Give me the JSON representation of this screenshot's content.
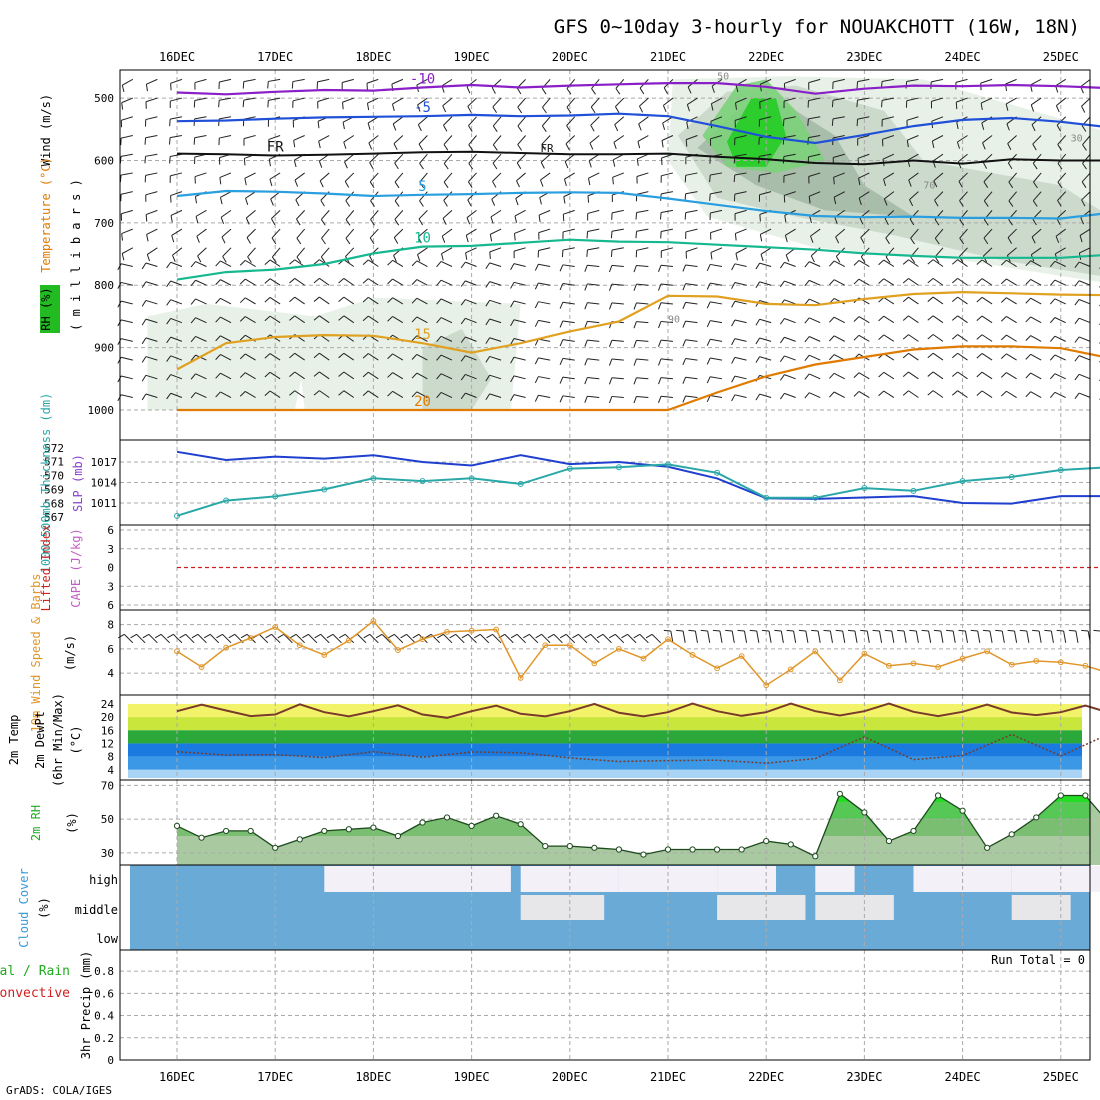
{
  "page": {
    "title": "GFS 0~10day 3-hourly for NOUAKCHOTT (16W, 18N)",
    "footer": "GrADS: COLA/IGES",
    "dates": [
      "16DEC",
      "17DEC",
      "18DEC",
      "19DEC",
      "20DEC",
      "21DEC",
      "22DEC",
      "23DEC",
      "24DEC",
      "25DEC"
    ]
  },
  "colors": {
    "temperature": "#e07b00",
    "rh_green": "#22bb22",
    "slp_blue": "#1f3fcf",
    "thickness_cyan": "#2aa8a8",
    "wind_orange": "#e0962a",
    "cape_magenta": "#c060c0",
    "li_red": "#d02020",
    "cloud_blue": "#6aaad6",
    "cloud_pale": "#f3f0f8"
  },
  "chart_data": [
    {
      "type": "contour",
      "panel": "upper-air",
      "ylabels": [
        "Wind (m/s)",
        "Temperature (°C)",
        "RH (%)",
        "( m i l l i b a r s )"
      ],
      "yticks": [
        500,
        600,
        700,
        800,
        900,
        1000
      ],
      "ylim": [
        455,
        1000
      ],
      "freezing_label": "FR",
      "rh_labels": [
        "30",
        "50",
        "70",
        "90"
      ],
      "temperature_isotherms": [
        {
          "label": "-10",
          "x": [
            0,
            0.5,
            1,
            1.5,
            2,
            2.5,
            3,
            3.5,
            4,
            4.5,
            5,
            5.5,
            6,
            6.5,
            7,
            7.5,
            8,
            8.5,
            9,
            9.5
          ],
          "y": [
            491,
            494,
            490,
            487,
            488,
            483,
            479,
            483,
            480,
            478,
            476,
            476,
            482,
            493,
            485,
            480,
            481,
            479,
            481,
            484
          ]
        },
        {
          "label": "-5",
          "x": [
            0,
            0.5,
            1,
            1.5,
            2,
            2.5,
            3,
            3.5,
            4,
            4.5,
            5,
            5.5,
            6,
            6.5,
            7,
            7.5,
            8,
            8.5,
            9,
            9.5
          ],
          "y": [
            537,
            536,
            533,
            531,
            530,
            529,
            527,
            529,
            528,
            525,
            529,
            545,
            562,
            572,
            559,
            545,
            535,
            532,
            538,
            547
          ]
        },
        {
          "label": "FR",
          "x": [
            0,
            0.5,
            1,
            1.5,
            2,
            2.5,
            3,
            3.5,
            4,
            4.5,
            5,
            5.5,
            6,
            6.5,
            7,
            7.5,
            8,
            8.5,
            9,
            9.5
          ],
          "y": [
            589,
            590,
            592,
            591,
            589,
            587,
            586,
            588,
            590,
            590,
            589,
            594,
            598,
            604,
            606,
            600,
            605,
            598,
            600,
            600
          ]
        },
        {
          "label": "5",
          "x": [
            0,
            0.5,
            1,
            1.5,
            2,
            2.5,
            3,
            3.5,
            4,
            4.5,
            5,
            5.5,
            6,
            6.5,
            7,
            7.5,
            8,
            8.5,
            9,
            9.5
          ],
          "y": [
            657,
            649,
            650,
            653,
            657,
            655,
            654,
            652,
            651,
            652,
            661,
            671,
            681,
            689,
            691,
            690,
            692,
            692,
            693,
            684
          ]
        },
        {
          "label": "10",
          "x": [
            0,
            0.5,
            1,
            1.5,
            2,
            2.5,
            3,
            3.5,
            4,
            4.5,
            5,
            5.5,
            6,
            6.5,
            7,
            7.5,
            8,
            8.5,
            9,
            9.5
          ],
          "y": [
            791,
            779,
            775,
            766,
            749,
            738,
            737,
            732,
            727,
            730,
            731,
            735,
            739,
            743,
            749,
            753,
            756,
            756,
            756,
            751
          ]
        },
        {
          "label": "15",
          "x": [
            0,
            0.5,
            1,
            1.5,
            2,
            2.5,
            3,
            3.5,
            4,
            4.5,
            5,
            5.5,
            6,
            6.5,
            7,
            7.5,
            8,
            8.5,
            9,
            9.5
          ],
          "y": [
            935,
            893,
            883,
            880,
            881,
            893,
            908,
            893,
            874,
            858,
            817,
            818,
            830,
            832,
            822,
            814,
            811,
            813,
            815,
            816
          ]
        },
        {
          "label": "20",
          "x": [
            0,
            0.5,
            1,
            1.5,
            2,
            2.5,
            3,
            3.5,
            4,
            4.5,
            5,
            5.5,
            6,
            6.5,
            7,
            7.5,
            8,
            8.5,
            9,
            9.5
          ],
          "y": [
            1000,
            1000,
            1000,
            1000,
            1000,
            1000,
            1000,
            1000,
            1000,
            1000,
            1000,
            972,
            946,
            927,
            915,
            903,
            898,
            898,
            901,
            917
          ]
        }
      ]
    },
    {
      "type": "line",
      "panel": "slp-thickness",
      "ylabels": [
        "SLP (mb)",
        "1000-500mb Thickness (dm)"
      ],
      "yticks_slp": [
        1011,
        1014,
        1017
      ],
      "yticks_thickness": [
        567,
        568,
        569,
        570,
        571,
        572
      ],
      "series": [
        {
          "name": "SLP (mb)",
          "unit": "mb",
          "x": [
            0,
            0.5,
            1,
            1.5,
            2,
            2.5,
            3,
            3.5,
            4,
            4.5,
            5,
            5.5,
            6,
            6.5,
            7,
            7.5,
            8,
            8.5,
            9,
            9.5
          ],
          "values": [
            1018.5,
            1017.3,
            1017.8,
            1017.5,
            1018.0,
            1017.0,
            1016.5,
            1018.0,
            1016.7,
            1017.0,
            1016.3,
            1014.6,
            1011.7,
            1011.6,
            1011.8,
            1012.0,
            1011.0,
            1010.9,
            1012.0,
            1012.0
          ]
        },
        {
          "name": "1000-500mb Thickness (dm)",
          "unit": "dm",
          "x": [
            0,
            0.5,
            1,
            1.5,
            2,
            2.5,
            3,
            3.5,
            4,
            4.5,
            5,
            5.5,
            6,
            6.5,
            7,
            7.5,
            8,
            8.5,
            9,
            9.5
          ],
          "values": [
            567.1,
            568.2,
            568.5,
            569.0,
            569.8,
            569.6,
            569.8,
            569.4,
            570.5,
            570.6,
            570.8,
            570.2,
            568.4,
            568.4,
            569.1,
            568.9,
            569.6,
            569.9,
            570.4,
            570.6
          ]
        }
      ]
    },
    {
      "type": "line",
      "panel": "cape-li",
      "ylabels": [
        "Lifted Index",
        "CAPE (J/kg)"
      ],
      "yticks": [
        -6,
        -3,
        0,
        3,
        6
      ],
      "series": [
        {
          "name": "Lifted Index",
          "x": [
            0,
            1,
            2,
            3,
            4,
            5,
            6,
            7,
            8,
            9,
            9.6
          ],
          "values": [
            0,
            0,
            0,
            0,
            0,
            0,
            0,
            0,
            0,
            0,
            0
          ]
        }
      ]
    },
    {
      "type": "line",
      "panel": "wind10m",
      "ylabels": [
        "10m Wind Speed & Barbs",
        "(m/s)"
      ],
      "yticks": [
        4,
        6,
        8
      ],
      "series": [
        {
          "name": "10m Wind Speed",
          "unit": "m/s",
          "x": [
            0,
            0.25,
            0.5,
            0.75,
            1,
            1.25,
            1.5,
            1.75,
            2,
            2.25,
            2.5,
            2.75,
            3,
            3.25,
            3.5,
            3.75,
            4,
            4.25,
            4.5,
            4.75,
            5,
            5.25,
            5.5,
            5.75,
            6,
            6.25,
            6.5,
            6.75,
            7,
            7.25,
            7.5,
            7.75,
            8,
            8.25,
            8.5,
            8.75,
            9,
            9.25,
            9.5
          ],
          "values": [
            5.8,
            4.5,
            6.1,
            6.9,
            7.8,
            6.3,
            5.5,
            6.7,
            8.3,
            5.9,
            6.8,
            7.4,
            7.5,
            7.6,
            3.6,
            6.3,
            6.3,
            4.8,
            6.0,
            5.2,
            6.8,
            5.5,
            4.4,
            5.4,
            3.0,
            4.3,
            5.8,
            3.4,
            5.6,
            4.6,
            4.8,
            4.5,
            5.2,
            5.8,
            4.7,
            5.0,
            4.9,
            4.6,
            4.0
          ]
        }
      ]
    },
    {
      "type": "area",
      "panel": "temp2m",
      "ylabels": [
        "2m Temp",
        "2m DewPt",
        "(6hr Min/Max)",
        "(°C)"
      ],
      "yticks": [
        4,
        8,
        12,
        16,
        20,
        24
      ],
      "series": [
        {
          "name": "2m Temp",
          "unit": "°C",
          "x": [
            0,
            0.25,
            0.5,
            0.75,
            1,
            1.25,
            1.5,
            1.75,
            2,
            2.25,
            2.5,
            2.75,
            3,
            3.25,
            3.5,
            3.75,
            4,
            4.25,
            4.5,
            4.75,
            5,
            5.25,
            5.5,
            5.75,
            6,
            6.25,
            6.5,
            6.75,
            7,
            7.25,
            7.5,
            7.75,
            8,
            8.25,
            8.5,
            8.75,
            9,
            9.25,
            9.5,
            9.6
          ],
          "values": [
            21.8,
            23.8,
            22.0,
            20.3,
            20.8,
            23.9,
            21.5,
            20.2,
            21.8,
            23.6,
            20.8,
            19.8,
            21.8,
            23.5,
            21.0,
            20.2,
            21.8,
            24.0,
            21.3,
            20.2,
            21.5,
            24.1,
            21.8,
            20.4,
            21.5,
            24.1,
            21.8,
            20.5,
            21.8,
            24.1,
            21.6,
            20.3,
            21.6,
            23.8,
            21.4,
            20.6,
            21.5,
            23.5,
            21.3,
            21.2
          ]
        },
        {
          "name": "2m DewPt",
          "unit": "°C",
          "x": [
            0,
            0.5,
            1,
            1.5,
            2,
            2.5,
            3,
            3.5,
            4,
            4.5,
            5,
            5.5,
            6,
            6.5,
            7,
            7.5,
            8,
            8.5,
            9,
            9.5,
            9.6
          ],
          "values": [
            9.5,
            8.5,
            8.6,
            7.7,
            9.5,
            7.8,
            9.4,
            9.2,
            7.6,
            6.5,
            6.8,
            6.9,
            6.0,
            7.4,
            14.0,
            7.1,
            8.3,
            14.7,
            8.2,
            15.0,
            9.0
          ]
        }
      ]
    },
    {
      "type": "area",
      "panel": "rh2m",
      "ylabels": [
        "2m RH",
        "(%)"
      ],
      "yticks": [
        30,
        50,
        70
      ],
      "series": [
        {
          "name": "2m RH",
          "unit": "%",
          "x": [
            0,
            0.25,
            0.5,
            0.75,
            1,
            1.25,
            1.5,
            1.75,
            2,
            2.25,
            2.5,
            2.75,
            3,
            3.25,
            3.5,
            3.75,
            4,
            4.25,
            4.5,
            4.75,
            5,
            5.25,
            5.5,
            5.75,
            6,
            6.25,
            6.5,
            6.75,
            7,
            7.25,
            7.5,
            7.75,
            8,
            8.25,
            8.5,
            8.75,
            9,
            9.25,
            9.5,
            9.6
          ],
          "values": [
            46,
            39,
            43,
            43,
            33,
            38,
            43,
            44,
            45,
            40,
            48,
            51,
            46,
            52,
            47,
            34,
            34,
            33,
            32,
            29,
            32,
            32,
            32,
            32,
            37,
            35,
            28,
            65,
            54,
            37,
            43,
            64,
            55,
            33,
            41,
            51,
            64,
            64,
            47,
            45
          ]
        }
      ]
    },
    {
      "type": "heatmap",
      "panel": "cloud",
      "ylabels": [
        "Cloud Cover",
        "(%)"
      ],
      "levels": [
        "high",
        "middle",
        "low"
      ],
      "x": [
        0,
        1,
        2,
        3,
        4,
        5,
        6,
        7,
        8,
        9
      ],
      "high": [
        0,
        0,
        100,
        90,
        100,
        100,
        60,
        40,
        100,
        100
      ],
      "middle": [
        0,
        0,
        0,
        0,
        85,
        0,
        90,
        80,
        0,
        60
      ],
      "low": [
        0,
        0,
        0,
        0,
        0,
        0,
        0,
        0,
        0,
        0
      ]
    },
    {
      "type": "bar",
      "panel": "precip",
      "ylabels": [
        "Total / Rain",
        "Convective",
        "3hr Precip (mm)"
      ],
      "run_total": "Run Total = 0",
      "yticks": [
        "0",
        "0.2",
        "0.4",
        "0.6",
        "0.8"
      ],
      "x": [
        0,
        1,
        2,
        3,
        4,
        5,
        6,
        7,
        8,
        9
      ],
      "values": [
        0,
        0,
        0,
        0,
        0,
        0,
        0,
        0,
        0,
        0
      ]
    }
  ]
}
